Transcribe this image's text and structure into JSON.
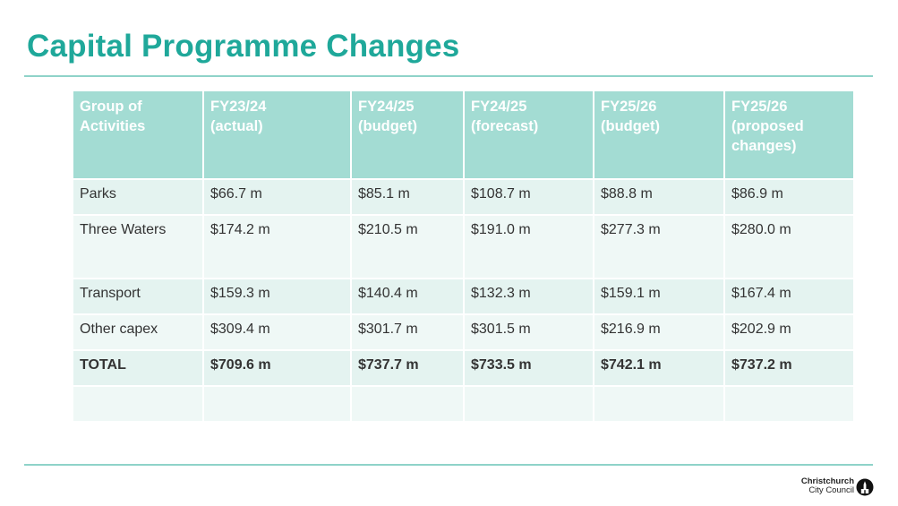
{
  "slide": {
    "title": "Capital Programme Changes"
  },
  "table": {
    "headers": [
      [
        "Group of",
        "Activities"
      ],
      [
        "FY23/24",
        "(actual)"
      ],
      [
        "FY24/25",
        "(budget)"
      ],
      [
        "FY24/25",
        "(forecast)"
      ],
      [
        "FY25/26",
        "(budget)"
      ],
      [
        "FY25/26",
        "(proposed",
        "changes)"
      ]
    ],
    "rows": [
      [
        "Parks",
        "$66.7 m",
        "$85.1 m",
        "$108.7 m",
        "$88.8 m",
        "$86.9 m"
      ],
      [
        "Three Waters",
        "$174.2 m",
        "$210.5 m",
        "$191.0 m",
        "$277.3 m",
        "$280.0 m"
      ],
      [
        "Transport",
        "$159.3 m",
        "$140.4 m",
        "$132.3 m",
        "$159.1 m",
        "$167.4 m"
      ],
      [
        "Other capex",
        "$309.4 m",
        "$301.7 m",
        "$301.5 m",
        "$216.9 m",
        "$202.9 m"
      ],
      [
        "TOTAL",
        "$709.6 m",
        "$737.7 m",
        "$733.5 m",
        "$742.1 m",
        "$737.2 m"
      ],
      [
        "",
        "",
        "",
        "",
        "",
        ""
      ]
    ]
  },
  "logo": {
    "line1": "Christchurch",
    "line2": "City Council"
  },
  "colors": {
    "title": "#1fa89a",
    "header_bg": "#a3dcd3",
    "highlight_text": "#e0281d"
  }
}
